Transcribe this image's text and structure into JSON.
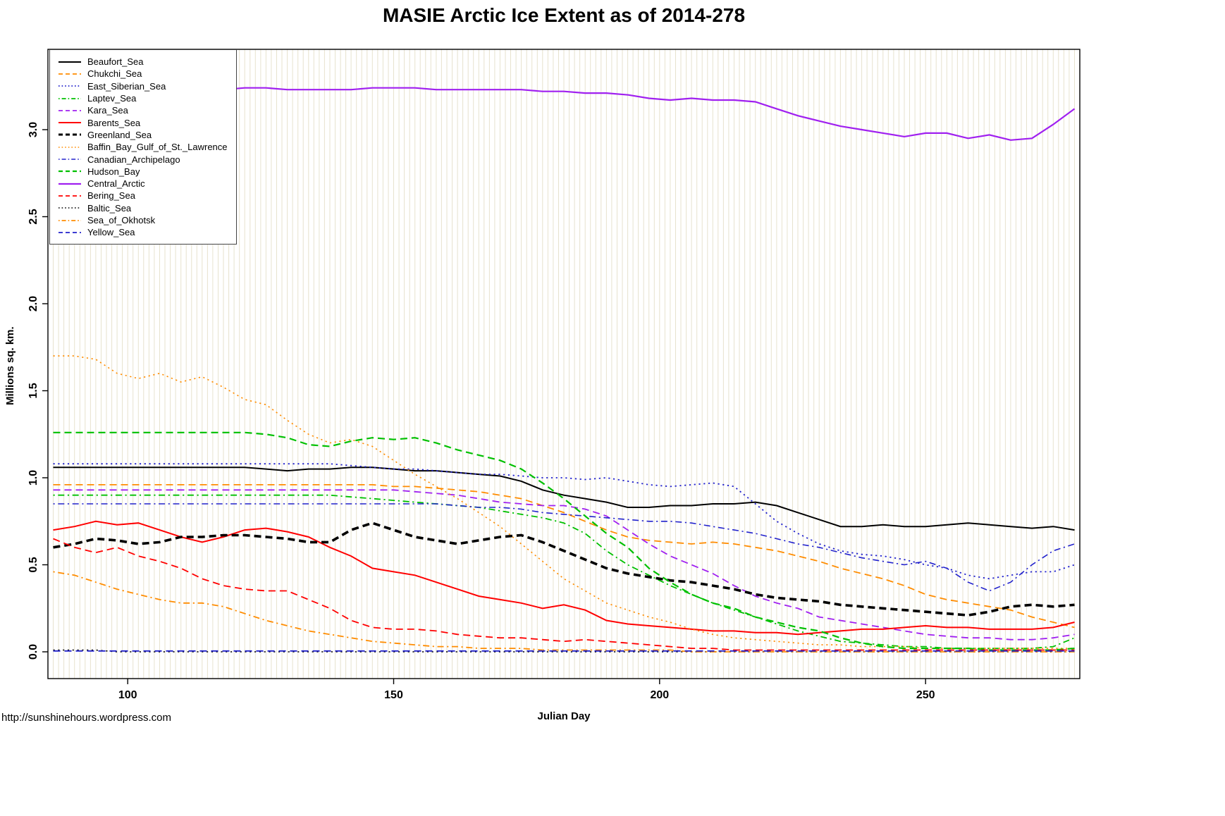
{
  "page": {
    "title": "MASIE Arctic Ice Extent as of 2014-278",
    "footer_url": "http://sunshinehours.wordpress.com"
  },
  "chart_data": {
    "type": "line",
    "title": "MASIE Arctic Ice Extent as of 2014-278",
    "xlabel": "Julian Day",
    "ylabel": "Millions sq. km.",
    "xlim": [
      85,
      279
    ],
    "ylim": [
      -0.05,
      3.46
    ],
    "x_ticks": [
      "100",
      "150",
      "200",
      "250"
    ],
    "y_ticks": [
      "0.0",
      "0.5",
      "1.0",
      "1.5",
      "2.0",
      "2.5",
      "3.0"
    ],
    "legend_position": "top-left",
    "grid": {
      "vertical_every_days": 1,
      "color": "#e7e2ce"
    },
    "x": [
      86,
      90,
      94,
      98,
      102,
      106,
      110,
      114,
      118,
      122,
      126,
      130,
      134,
      138,
      142,
      146,
      150,
      154,
      158,
      162,
      166,
      170,
      174,
      178,
      182,
      186,
      190,
      194,
      198,
      202,
      206,
      210,
      214,
      218,
      222,
      226,
      230,
      234,
      238,
      242,
      246,
      250,
      254,
      258,
      262,
      266,
      270,
      274,
      278
    ],
    "series": [
      {
        "name": "Beaufort_Sea",
        "color": "#000000",
        "dash": "solid",
        "width": 2,
        "values": [
          1.06,
          1.06,
          1.06,
          1.06,
          1.06,
          1.06,
          1.06,
          1.06,
          1.06,
          1.06,
          1.05,
          1.04,
          1.05,
          1.05,
          1.06,
          1.06,
          1.05,
          1.04,
          1.04,
          1.03,
          1.02,
          1.01,
          0.98,
          0.93,
          0.9,
          0.88,
          0.86,
          0.83,
          0.83,
          0.84,
          0.84,
          0.85,
          0.85,
          0.86,
          0.84,
          0.8,
          0.76,
          0.72,
          0.72,
          0.73,
          0.72,
          0.72,
          0.73,
          0.74,
          0.73,
          0.72,
          0.71,
          0.72,
          0.7
        ]
      },
      {
        "name": "Chukchi_Sea",
        "color": "#ff8c00",
        "dash": "dashed",
        "width": 1.8,
        "values": [
          0.96,
          0.96,
          0.96,
          0.96,
          0.96,
          0.96,
          0.96,
          0.96,
          0.96,
          0.96,
          0.96,
          0.96,
          0.96,
          0.96,
          0.96,
          0.96,
          0.95,
          0.95,
          0.94,
          0.93,
          0.92,
          0.9,
          0.88,
          0.84,
          0.8,
          0.75,
          0.7,
          0.66,
          0.64,
          0.63,
          0.62,
          0.63,
          0.62,
          0.6,
          0.58,
          0.55,
          0.52,
          0.48,
          0.45,
          0.42,
          0.38,
          0.33,
          0.3,
          0.28,
          0.26,
          0.24,
          0.2,
          0.17,
          0.14
        ]
      },
      {
        "name": "East_Siberian_Sea",
        "color": "#2222cc",
        "dash": "dotted",
        "width": 1.8,
        "values": [
          1.08,
          1.08,
          1.08,
          1.08,
          1.08,
          1.08,
          1.08,
          1.08,
          1.08,
          1.08,
          1.08,
          1.08,
          1.08,
          1.08,
          1.07,
          1.06,
          1.05,
          1.05,
          1.04,
          1.03,
          1.02,
          1.02,
          1.01,
          1.0,
          1.0,
          0.99,
          1.0,
          0.98,
          0.96,
          0.95,
          0.96,
          0.97,
          0.95,
          0.85,
          0.75,
          0.68,
          0.62,
          0.58,
          0.56,
          0.55,
          0.53,
          0.5,
          0.48,
          0.44,
          0.42,
          0.44,
          0.46,
          0.46,
          0.5
        ]
      },
      {
        "name": "Laptev_Sea",
        "color": "#00c000",
        "dash": "dotdash",
        "width": 1.8,
        "values": [
          0.9,
          0.9,
          0.9,
          0.9,
          0.9,
          0.9,
          0.9,
          0.9,
          0.9,
          0.9,
          0.9,
          0.9,
          0.9,
          0.9,
          0.89,
          0.88,
          0.87,
          0.86,
          0.85,
          0.84,
          0.83,
          0.81,
          0.79,
          0.77,
          0.74,
          0.68,
          0.58,
          0.5,
          0.44,
          0.38,
          0.33,
          0.28,
          0.24,
          0.2,
          0.16,
          0.12,
          0.09,
          0.06,
          0.05,
          0.04,
          0.03,
          0.03,
          0.02,
          0.02,
          0.02,
          0.02,
          0.02,
          0.03,
          0.08
        ]
      },
      {
        "name": "Kara_Sea",
        "color": "#a020f0",
        "dash": "dashed",
        "width": 1.8,
        "values": [
          0.93,
          0.93,
          0.93,
          0.93,
          0.93,
          0.93,
          0.93,
          0.93,
          0.93,
          0.93,
          0.93,
          0.93,
          0.93,
          0.93,
          0.93,
          0.93,
          0.93,
          0.92,
          0.91,
          0.9,
          0.88,
          0.86,
          0.85,
          0.84,
          0.84,
          0.82,
          0.78,
          0.7,
          0.62,
          0.55,
          0.5,
          0.45,
          0.38,
          0.32,
          0.28,
          0.25,
          0.2,
          0.18,
          0.16,
          0.14,
          0.12,
          0.1,
          0.09,
          0.08,
          0.08,
          0.07,
          0.07,
          0.08,
          0.1
        ]
      },
      {
        "name": "Barents_Sea",
        "color": "#ff0000",
        "dash": "solid",
        "width": 2,
        "values": [
          0.7,
          0.72,
          0.75,
          0.73,
          0.74,
          0.7,
          0.66,
          0.63,
          0.66,
          0.7,
          0.71,
          0.69,
          0.66,
          0.6,
          0.55,
          0.48,
          0.46,
          0.44,
          0.4,
          0.36,
          0.32,
          0.3,
          0.28,
          0.25,
          0.27,
          0.24,
          0.18,
          0.16,
          0.15,
          0.14,
          0.13,
          0.12,
          0.12,
          0.11,
          0.11,
          0.1,
          0.11,
          0.12,
          0.13,
          0.13,
          0.14,
          0.15,
          0.14,
          0.14,
          0.13,
          0.13,
          0.13,
          0.14,
          0.17
        ]
      },
      {
        "name": "Greenland_Sea",
        "color": "#000000",
        "dash": "dashed",
        "width": 3.6,
        "values": [
          0.6,
          0.62,
          0.65,
          0.64,
          0.62,
          0.63,
          0.66,
          0.66,
          0.67,
          0.67,
          0.66,
          0.65,
          0.63,
          0.63,
          0.7,
          0.74,
          0.7,
          0.66,
          0.64,
          0.62,
          0.64,
          0.66,
          0.67,
          0.63,
          0.58,
          0.53,
          0.48,
          0.45,
          0.43,
          0.41,
          0.4,
          0.38,
          0.36,
          0.33,
          0.31,
          0.3,
          0.29,
          0.27,
          0.26,
          0.25,
          0.24,
          0.23,
          0.22,
          0.21,
          0.23,
          0.26,
          0.27,
          0.26,
          0.27
        ]
      },
      {
        "name": "Baffin_Bay_Gulf_of_St._Lawrence",
        "color": "#ff8c00",
        "dash": "dotted",
        "width": 1.6,
        "values": [
          1.7,
          1.7,
          1.68,
          1.6,
          1.57,
          1.6,
          1.55,
          1.58,
          1.52,
          1.45,
          1.42,
          1.33,
          1.25,
          1.2,
          1.22,
          1.18,
          1.1,
          1.02,
          0.95,
          0.88,
          0.8,
          0.72,
          0.62,
          0.52,
          0.42,
          0.35,
          0.28,
          0.24,
          0.2,
          0.17,
          0.13,
          0.1,
          0.08,
          0.07,
          0.06,
          0.05,
          0.04,
          0.04,
          0.03,
          0.03,
          0.03,
          0.02,
          0.02,
          0.02,
          0.02,
          0.02,
          0.02,
          0.02,
          0.02
        ]
      },
      {
        "name": "Canadian_Archipelago",
        "color": "#2222cc",
        "dash": "dotdash",
        "width": 1.6,
        "values": [
          0.85,
          0.85,
          0.85,
          0.85,
          0.85,
          0.85,
          0.85,
          0.85,
          0.85,
          0.85,
          0.85,
          0.85,
          0.85,
          0.85,
          0.85,
          0.85,
          0.85,
          0.85,
          0.85,
          0.84,
          0.83,
          0.83,
          0.82,
          0.8,
          0.79,
          0.78,
          0.77,
          0.76,
          0.75,
          0.75,
          0.74,
          0.72,
          0.7,
          0.68,
          0.65,
          0.62,
          0.6,
          0.57,
          0.54,
          0.52,
          0.5,
          0.52,
          0.48,
          0.4,
          0.35,
          0.4,
          0.5,
          0.58,
          0.62
        ]
      },
      {
        "name": "Hudson_Bay",
        "color": "#00c000",
        "dash": "dashed",
        "width": 2.2,
        "values": [
          1.26,
          1.26,
          1.26,
          1.26,
          1.26,
          1.26,
          1.26,
          1.26,
          1.26,
          1.26,
          1.25,
          1.23,
          1.19,
          1.18,
          1.21,
          1.23,
          1.22,
          1.23,
          1.2,
          1.16,
          1.13,
          1.1,
          1.05,
          0.97,
          0.88,
          0.78,
          0.68,
          0.6,
          0.48,
          0.4,
          0.33,
          0.28,
          0.25,
          0.2,
          0.17,
          0.14,
          0.12,
          0.08,
          0.05,
          0.03,
          0.02,
          0.02,
          0.02,
          0.02,
          0.01,
          0.01,
          0.01,
          0.01,
          0.02
        ]
      },
      {
        "name": "Central_Arctic",
        "color": "#a020f0",
        "dash": "solid",
        "width": 2.2,
        "values": [
          3.22,
          3.23,
          3.23,
          3.23,
          3.24,
          3.23,
          3.23,
          3.23,
          3.23,
          3.24,
          3.24,
          3.23,
          3.23,
          3.23,
          3.23,
          3.24,
          3.24,
          3.24,
          3.23,
          3.23,
          3.23,
          3.23,
          3.23,
          3.22,
          3.22,
          3.21,
          3.21,
          3.2,
          3.18,
          3.17,
          3.18,
          3.17,
          3.17,
          3.16,
          3.12,
          3.08,
          3.05,
          3.02,
          3.0,
          2.98,
          2.96,
          2.98,
          2.98,
          2.95,
          2.97,
          2.94,
          2.95,
          3.03,
          3.12
        ]
      },
      {
        "name": "Bering_Sea",
        "color": "#ff0000",
        "dash": "dashed",
        "width": 1.8,
        "values": [
          0.65,
          0.6,
          0.57,
          0.6,
          0.55,
          0.52,
          0.48,
          0.42,
          0.38,
          0.36,
          0.35,
          0.35,
          0.3,
          0.25,
          0.18,
          0.14,
          0.13,
          0.13,
          0.12,
          0.1,
          0.09,
          0.08,
          0.08,
          0.07,
          0.06,
          0.07,
          0.06,
          0.05,
          0.04,
          0.03,
          0.02,
          0.02,
          0.01,
          0.01,
          0.01,
          0.01,
          0.01,
          0.01,
          0.01,
          0.01,
          0.01,
          0.01,
          0.01,
          0.01,
          0.01,
          0.01,
          0.01,
          0.01,
          0.01
        ]
      },
      {
        "name": "Baltic_Sea",
        "color": "#000000",
        "dash": "dotted",
        "width": 1.6,
        "values": [
          0.01,
          0.01,
          0.01,
          0,
          0,
          0,
          0,
          0,
          0,
          0,
          0,
          0,
          0,
          0,
          0,
          0,
          0,
          0,
          0,
          0,
          0,
          0,
          0,
          0,
          0,
          0,
          0,
          0,
          0,
          0,
          0,
          0,
          0,
          0,
          0,
          0,
          0,
          0,
          0,
          0,
          0,
          0,
          0,
          0,
          0,
          0,
          0,
          0,
          0
        ]
      },
      {
        "name": "Sea_of_Okhotsk",
        "color": "#ff8c00",
        "dash": "dotdash",
        "width": 1.8,
        "values": [
          0.46,
          0.44,
          0.4,
          0.36,
          0.33,
          0.3,
          0.28,
          0.28,
          0.26,
          0.22,
          0.18,
          0.15,
          0.12,
          0.1,
          0.08,
          0.06,
          0.05,
          0.04,
          0.03,
          0.03,
          0.02,
          0.02,
          0.02,
          0.01,
          0.01,
          0.01,
          0.01,
          0.01,
          0.01,
          0.01,
          0,
          0,
          0,
          0,
          0,
          0,
          0,
          0,
          0,
          0,
          0,
          0,
          0,
          0,
          0,
          0,
          0,
          0,
          0
        ]
      },
      {
        "name": "Yellow_Sea",
        "color": "#2222cc",
        "dash": "dashed",
        "width": 1.8,
        "values": [
          0.005,
          0.005,
          0.005,
          0.005,
          0.005,
          0.005,
          0.005,
          0.005,
          0.005,
          0.005,
          0.005,
          0.005,
          0.005,
          0.005,
          0.005,
          0.005,
          0.005,
          0.005,
          0.005,
          0.005,
          0.005,
          0.005,
          0.005,
          0.005,
          0.005,
          0.005,
          0.005,
          0.005,
          0.005,
          0.005,
          0.005,
          0.005,
          0.005,
          0.005,
          0.005,
          0.005,
          0.005,
          0.005,
          0.005,
          0.005,
          0.005,
          0.005,
          0.005,
          0.005,
          0.005,
          0.005,
          0.005,
          0.005,
          0.005
        ]
      }
    ]
  }
}
